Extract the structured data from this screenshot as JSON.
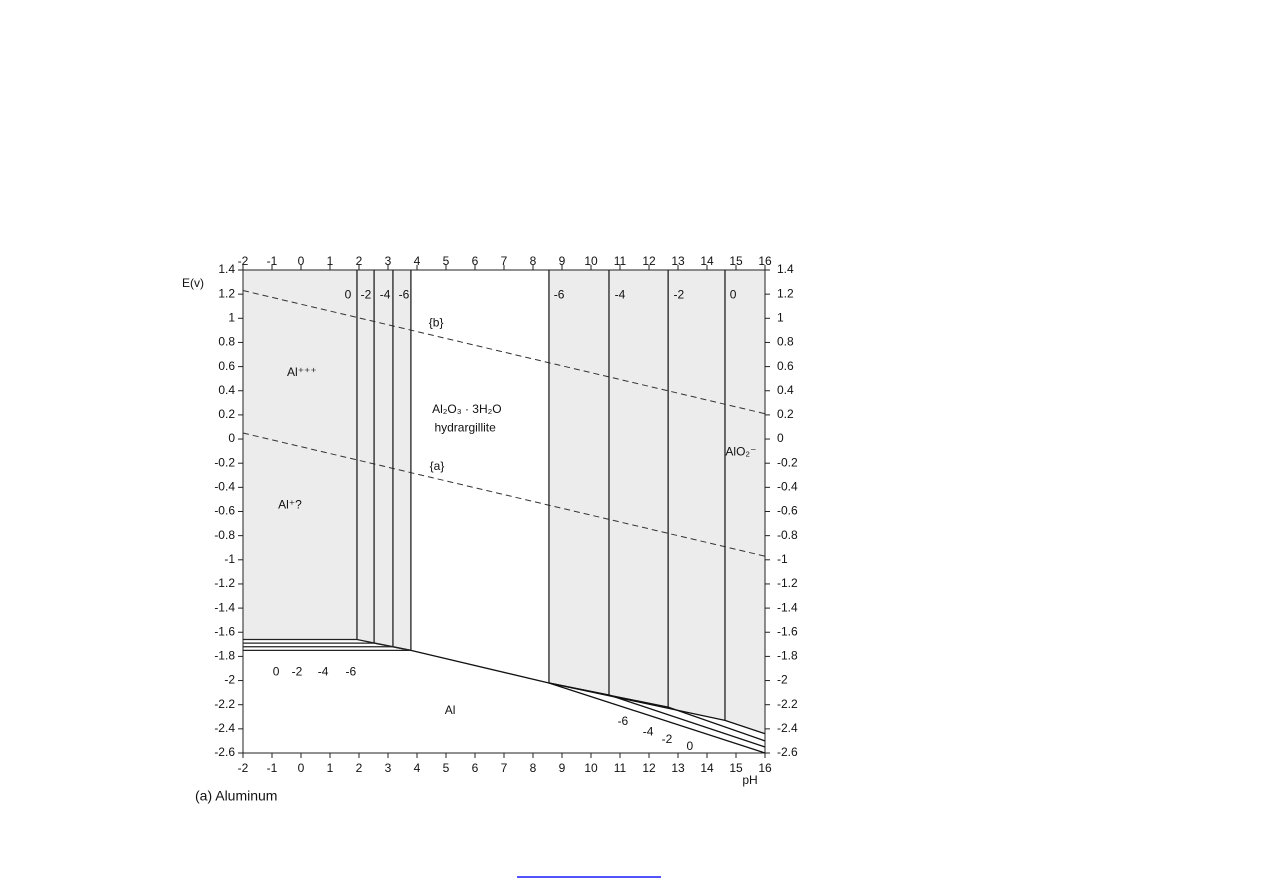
{
  "chart_data": {
    "type": "line",
    "ylabel": "E(v)",
    "xlabel": "pH",
    "caption": "(a) Aluminum",
    "xlim": [
      -2,
      16
    ],
    "ylim": [
      -2.6,
      1.4
    ],
    "xticks": [
      -2,
      -1,
      0,
      1,
      2,
      3,
      4,
      5,
      6,
      7,
      8,
      9,
      10,
      11,
      12,
      13,
      14,
      15,
      16
    ],
    "yticks": [
      -2.6,
      -2.4,
      -2.2,
      -2,
      -1.8,
      -1.6,
      -1.4,
      -1.2,
      -1,
      -0.8,
      -0.6,
      -0.4,
      -0.2,
      0,
      0.2,
      0.4,
      0.6,
      0.8,
      1,
      1.2,
      1.4
    ],
    "series": [
      {
        "x": [
          -2,
          16
        ],
        "values": [
          1.23,
          0.21
        ],
        "dashed": true,
        "color": "#333333"
      },
      {
        "x": [
          -2,
          16
        ],
        "values": [
          0.05,
          -0.97
        ],
        "dashed": true,
        "color": "#333333"
      },
      {
        "x": [
          1.93,
          1.93
        ],
        "values": [
          1.4,
          -1.66
        ],
        "color": "#222222"
      },
      {
        "x": [
          2.52,
          2.52
        ],
        "values": [
          1.4,
          -1.69
        ],
        "color": "#222222"
      },
      {
        "x": [
          3.17,
          3.17
        ],
        "values": [
          1.4,
          -1.72
        ],
        "color": "#222222"
      },
      {
        "x": [
          3.79,
          3.79
        ],
        "values": [
          1.4,
          -1.75
        ],
        "color": "#222222"
      },
      {
        "x": [
          8.55,
          8.55
        ],
        "values": [
          1.4,
          -2.02
        ],
        "color": "#222222"
      },
      {
        "x": [
          10.62,
          10.62
        ],
        "values": [
          1.4,
          -2.12
        ],
        "color": "#222222"
      },
      {
        "x": [
          12.66,
          12.66
        ],
        "values": [
          1.4,
          -2.22
        ],
        "color": "#222222"
      },
      {
        "x": [
          14.62,
          14.62
        ],
        "values": [
          1.4,
          -2.33
        ],
        "color": "#222222"
      },
      {
        "x": [
          -2,
          1.93,
          3.79
        ],
        "values": [
          -1.66,
          -1.66,
          -1.75
        ],
        "color": "#222222"
      },
      {
        "x": [
          -2,
          2.52,
          3.79
        ],
        "values": [
          -1.69,
          -1.69,
          -1.75
        ],
        "color": "#222222"
      },
      {
        "x": [
          -2,
          3.17,
          3.79
        ],
        "values": [
          -1.72,
          -1.72,
          -1.75
        ],
        "color": "#222222"
      },
      {
        "x": [
          -2,
          3.79
        ],
        "values": [
          -1.75,
          -1.75
        ],
        "color": "#222222"
      },
      {
        "x": [
          3.79,
          8.55
        ],
        "values": [
          -1.75,
          -2.02
        ],
        "color": "#111111"
      },
      {
        "x": [
          8.55,
          14.62,
          16
        ],
        "values": [
          -2.02,
          -2.33,
          -2.44
        ],
        "color": "#111111"
      },
      {
        "x": [
          8.55,
          12.66,
          16
        ],
        "values": [
          -2.02,
          -2.22,
          -2.5
        ],
        "color": "#111111"
      },
      {
        "x": [
          8.55,
          10.62,
          16
        ],
        "values": [
          -2.02,
          -2.12,
          -2.55
        ],
        "color": "#111111"
      },
      {
        "x": [
          8.55,
          16
        ],
        "values": [
          -2.02,
          -2.6
        ],
        "color": "#111111"
      }
    ],
    "annotations": [
      {
        "text": "Al⁺⁺⁺",
        "x": 0.03,
        "y": 0.55
      },
      {
        "text": "Al₂O₃ · 3H₂O",
        "x": 5.72,
        "y": 0.24
      },
      {
        "text": "hydrargillite",
        "x": 5.66,
        "y": 0.09
      },
      {
        "text": "AlO₂⁻",
        "x": 15.17,
        "y": -0.11
      },
      {
        "text": "Al⁺?",
        "x": -0.38,
        "y": -0.55
      },
      {
        "text": "Al",
        "x": 5.14,
        "y": -2.25
      },
      {
        "text": "{b}",
        "x": 4.66,
        "y": 0.96
      },
      {
        "text": "{a}",
        "x": 4.69,
        "y": -0.23
      },
      {
        "text": "0",
        "x": 1.62,
        "y": 1.19
      },
      {
        "text": "-2",
        "x": 2.24,
        "y": 1.19
      },
      {
        "text": "-4",
        "x": 2.9,
        "y": 1.19
      },
      {
        "text": "-6",
        "x": 3.55,
        "y": 1.19
      },
      {
        "text": "-6",
        "x": 8.9,
        "y": 1.19
      },
      {
        "text": "-4",
        "x": 11.0,
        "y": 1.19
      },
      {
        "text": "-2",
        "x": 13.03,
        "y": 1.19
      },
      {
        "text": "0",
        "x": 14.9,
        "y": 1.19
      },
      {
        "text": "0",
        "x": -0.86,
        "y": -1.93
      },
      {
        "text": "-2",
        "x": -0.14,
        "y": -1.93
      },
      {
        "text": "-4",
        "x": 0.76,
        "y": -1.93
      },
      {
        "text": "-6",
        "x": 1.72,
        "y": -1.93
      },
      {
        "text": "-6",
        "x": 11.1,
        "y": -2.34
      },
      {
        "text": "-4",
        "x": 11.97,
        "y": -2.43
      },
      {
        "text": "-2",
        "x": 12.62,
        "y": -2.49
      },
      {
        "text": "0",
        "x": 13.41,
        "y": -2.55
      }
    ]
  }
}
